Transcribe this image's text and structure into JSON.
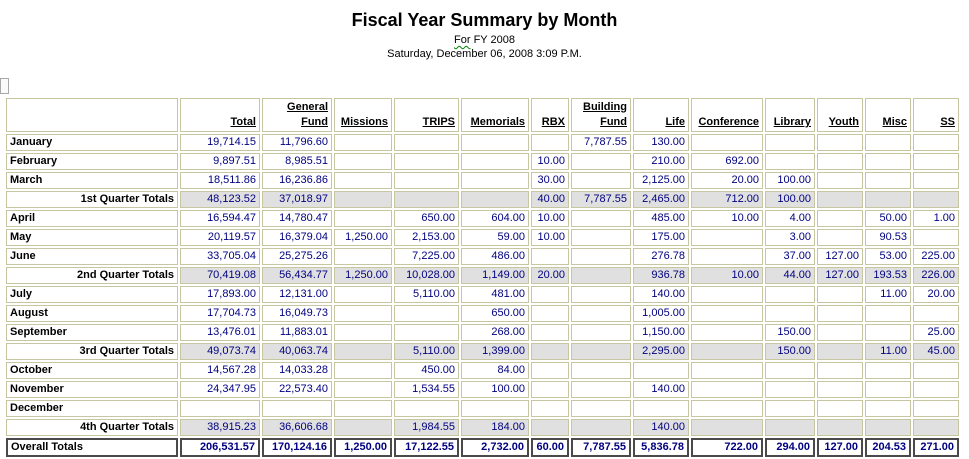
{
  "page": {
    "title": "Fiscal Year Summary by Month",
    "subtitle_prefix": "For",
    "subtitle_rest": " FY 2008",
    "date_line": "Saturday, December 06, 2008 3:09 P.M."
  },
  "colors": {
    "border": "#c6c6a0",
    "number": "#000080",
    "quarter_bg": "#e0e0e0",
    "overall_border": "#4a4a4a",
    "grammar_underline": "#008000"
  },
  "chart_data": {
    "type": "table",
    "title": "Fiscal Year Summary by Month"
  },
  "table": {
    "columns": [
      "Total",
      "General Fund",
      "Missions",
      "TRIPS",
      "Memorials",
      "RBX",
      "Building Fund",
      "Life",
      "Conference",
      "Library",
      "Youth",
      "Misc",
      "SS"
    ],
    "rows": [
      {
        "label": "January",
        "type": "month",
        "values": [
          "19,714.15",
          "11,796.60",
          "",
          "",
          "",
          "",
          "7,787.55",
          "130.00",
          "",
          "",
          "",
          "",
          ""
        ]
      },
      {
        "label": "February",
        "type": "month",
        "values": [
          "9,897.51",
          "8,985.51",
          "",
          "",
          "",
          "10.00",
          "",
          "210.00",
          "692.00",
          "",
          "",
          "",
          ""
        ]
      },
      {
        "label": "March",
        "type": "month",
        "values": [
          "18,511.86",
          "16,236.86",
          "",
          "",
          "",
          "30.00",
          "",
          "2,125.00",
          "20.00",
          "100.00",
          "",
          "",
          ""
        ]
      },
      {
        "label": "1st Quarter Totals",
        "type": "quarter",
        "values": [
          "48,123.52",
          "37,018.97",
          "",
          "",
          "",
          "40.00",
          "7,787.55",
          "2,465.00",
          "712.00",
          "100.00",
          "",
          "",
          ""
        ]
      },
      {
        "label": "April",
        "type": "month",
        "values": [
          "16,594.47",
          "14,780.47",
          "",
          "650.00",
          "604.00",
          "10.00",
          "",
          "485.00",
          "10.00",
          "4.00",
          "",
          "50.00",
          "1.00"
        ]
      },
      {
        "label": "May",
        "type": "month",
        "values": [
          "20,119.57",
          "16,379.04",
          "1,250.00",
          "2,153.00",
          "59.00",
          "10.00",
          "",
          "175.00",
          "",
          "3.00",
          "",
          "90.53",
          ""
        ]
      },
      {
        "label": "June",
        "type": "month",
        "values": [
          "33,705.04",
          "25,275.26",
          "",
          "7,225.00",
          "486.00",
          "",
          "",
          "276.78",
          "",
          "37.00",
          "127.00",
          "53.00",
          "225.00"
        ]
      },
      {
        "label": "2nd Quarter Totals",
        "type": "quarter",
        "values": [
          "70,419.08",
          "56,434.77",
          "1,250.00",
          "10,028.00",
          "1,149.00",
          "20.00",
          "",
          "936.78",
          "10.00",
          "44.00",
          "127.00",
          "193.53",
          "226.00"
        ]
      },
      {
        "label": "July",
        "type": "month",
        "values": [
          "17,893.00",
          "12,131.00",
          "",
          "5,110.00",
          "481.00",
          "",
          "",
          "140.00",
          "",
          "",
          "",
          "11.00",
          "20.00"
        ]
      },
      {
        "label": "August",
        "type": "month",
        "values": [
          "17,704.73",
          "16,049.73",
          "",
          "",
          "650.00",
          "",
          "",
          "1,005.00",
          "",
          "",
          "",
          "",
          ""
        ]
      },
      {
        "label": "September",
        "type": "month",
        "values": [
          "13,476.01",
          "11,883.01",
          "",
          "",
          "268.00",
          "",
          "",
          "1,150.00",
          "",
          "150.00",
          "",
          "",
          "25.00"
        ]
      },
      {
        "label": "3rd Quarter Totals",
        "type": "quarter",
        "values": [
          "49,073.74",
          "40,063.74",
          "",
          "5,110.00",
          "1,399.00",
          "",
          "",
          "2,295.00",
          "",
          "150.00",
          "",
          "11.00",
          "45.00"
        ]
      },
      {
        "label": "October",
        "type": "month",
        "values": [
          "14,567.28",
          "14,033.28",
          "",
          "450.00",
          "84.00",
          "",
          "",
          "",
          "",
          "",
          "",
          "",
          ""
        ]
      },
      {
        "label": "November",
        "type": "month",
        "values": [
          "24,347.95",
          "22,573.40",
          "",
          "1,534.55",
          "100.00",
          "",
          "",
          "140.00",
          "",
          "",
          "",
          "",
          ""
        ]
      },
      {
        "label": "December",
        "type": "month",
        "values": [
          "",
          "",
          "",
          "",
          "",
          "",
          "",
          "",
          "",
          "",
          "",
          "",
          ""
        ]
      },
      {
        "label": "4th Quarter Totals",
        "type": "quarter",
        "values": [
          "38,915.23",
          "36,606.68",
          "",
          "1,984.55",
          "184.00",
          "",
          "",
          "140.00",
          "",
          "",
          "",
          "",
          ""
        ]
      },
      {
        "label": "Overall Totals",
        "type": "overall",
        "values": [
          "206,531.57",
          "170,124.16",
          "1,250.00",
          "17,122.55",
          "2,732.00",
          "60.00",
          "7,787.55",
          "5,836.78",
          "722.00",
          "294.00",
          "127.00",
          "204.53",
          "271.00"
        ]
      }
    ]
  }
}
